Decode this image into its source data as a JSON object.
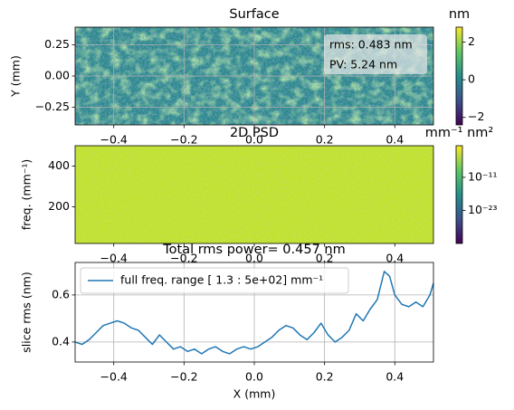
{
  "chart_data": [
    {
      "type": "image",
      "title": "Surface",
      "ylabel": "Y (mm)",
      "xlim": [
        -0.51,
        0.51
      ],
      "ylim": [
        -0.39,
        0.39
      ],
      "xticks": [
        {
          "value": -0.4,
          "label": "−0.4"
        },
        {
          "value": -0.2,
          "label": "−0.2"
        },
        {
          "value": 0,
          "label": "0.0"
        },
        0.2,
        0.4
      ],
      "yticks": [
        {
          "value": -0.25,
          "label": "−0.25"
        },
        {
          "value": 0,
          "label": "0.00"
        },
        0.25
      ],
      "grid": true,
      "annotations": [
        "rms: 0.483 nm",
        "PV: 5.24 nm"
      ],
      "colorbar": {
        "label": "nm",
        "colormap": "viridis",
        "lim": [
          -2.4,
          2.8
        ],
        "ticks": [
          {
            "value": -2,
            "label": "−2"
          },
          0,
          2
        ]
      }
    },
    {
      "type": "image",
      "title": "2D PSD",
      "ylabel": "freq. (mm⁻¹)",
      "xlim": [
        -0.51,
        0.51
      ],
      "ylim": [
        20,
        500
      ],
      "xticks": [
        {
          "value": -0.4,
          "label": "−0.4"
        },
        {
          "value": -0.2,
          "label": "−0.2"
        },
        {
          "value": 0,
          "label": "0.0"
        },
        0.2,
        0.4
      ],
      "yticks": [
        200,
        400
      ],
      "grid": false,
      "colorbar": {
        "label": "mm⁻¹ nm²",
        "colormap": "viridis",
        "log": true,
        "lim": [
          1e-35,
          3
        ],
        "ticks": [
          {
            "value": 1e-23,
            "label": "10⁻²³"
          },
          {
            "value": 1e-11,
            "label": "10⁻¹¹"
          }
        ]
      }
    },
    {
      "type": "line",
      "title": "Total rms power= 0.457 nm",
      "xlabel": "X (mm)",
      "ylabel": "slice rms (nm)",
      "xlim": [
        -0.51,
        0.51
      ],
      "ylim": [
        0.315,
        0.738
      ],
      "xticks": [
        {
          "value": -0.4,
          "label": "−0.4"
        },
        {
          "value": -0.2,
          "label": "−0.2"
        },
        {
          "value": 0,
          "label": "0.0"
        },
        0.2,
        0.4
      ],
      "yticks": [
        0.4,
        0.6
      ],
      "grid": true,
      "legend": "upper left",
      "series": [
        {
          "name": "full freq. range [ 1.3 : 5e+02] mm⁻¹",
          "color": "#1f77b4",
          "x": [
            -0.51,
            -0.49,
            -0.47,
            -0.45,
            -0.43,
            -0.41,
            -0.39,
            -0.37,
            -0.35,
            -0.33,
            -0.31,
            -0.29,
            -0.27,
            -0.25,
            -0.23,
            -0.21,
            -0.19,
            -0.17,
            -0.15,
            -0.13,
            -0.11,
            -0.09,
            -0.07,
            -0.05,
            -0.03,
            -0.01,
            0.01,
            0.03,
            0.05,
            0.07,
            0.09,
            0.11,
            0.13,
            0.15,
            0.17,
            0.19,
            0.21,
            0.23,
            0.25,
            0.27,
            0.29,
            0.31,
            0.33,
            0.35,
            0.37,
            0.385,
            0.4,
            0.42,
            0.44,
            0.46,
            0.48,
            0.5,
            0.51
          ],
          "values": [
            0.4,
            0.39,
            0.41,
            0.44,
            0.47,
            0.48,
            0.49,
            0.48,
            0.46,
            0.45,
            0.42,
            0.39,
            0.43,
            0.4,
            0.37,
            0.38,
            0.36,
            0.37,
            0.35,
            0.37,
            0.38,
            0.36,
            0.35,
            0.37,
            0.38,
            0.37,
            0.38,
            0.4,
            0.42,
            0.45,
            0.47,
            0.46,
            0.43,
            0.41,
            0.44,
            0.48,
            0.43,
            0.4,
            0.42,
            0.45,
            0.52,
            0.49,
            0.54,
            0.58,
            0.7,
            0.68,
            0.6,
            0.56,
            0.55,
            0.57,
            0.55,
            0.6,
            0.65
          ]
        }
      ]
    }
  ]
}
